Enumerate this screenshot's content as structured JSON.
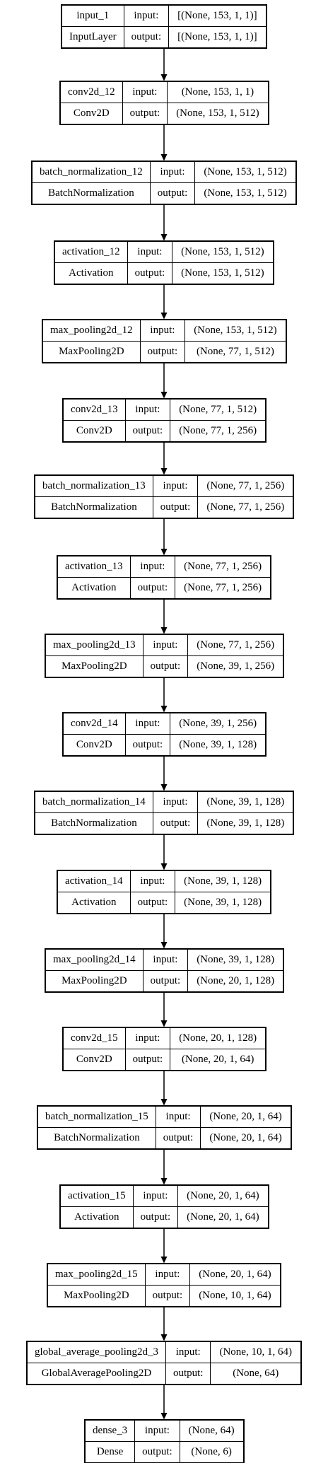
{
  "layers": [
    {
      "name": "input_1",
      "type": "InputLayer",
      "input_label": "input:",
      "output_label": "output:",
      "input_shape": "[(None, 153, 1, 1)]",
      "output_shape": "[(None, 153, 1, 1)]"
    },
    {
      "name": "conv2d_12",
      "type": "Conv2D",
      "input_label": "input:",
      "output_label": "output:",
      "input_shape": "(None, 153, 1, 1)",
      "output_shape": "(None, 153, 1, 512)"
    },
    {
      "name": "batch_normalization_12",
      "type": "BatchNormalization",
      "input_label": "input:",
      "output_label": "output:",
      "input_shape": "(None, 153, 1, 512)",
      "output_shape": "(None, 153, 1, 512)"
    },
    {
      "name": "activation_12",
      "type": "Activation",
      "input_label": "input:",
      "output_label": "output:",
      "input_shape": "(None, 153, 1, 512)",
      "output_shape": "(None, 153, 1, 512)"
    },
    {
      "name": "max_pooling2d_12",
      "type": "MaxPooling2D",
      "input_label": "input:",
      "output_label": "output:",
      "input_shape": "(None, 153, 1, 512)",
      "output_shape": "(None, 77, 1, 512)"
    },
    {
      "name": "conv2d_13",
      "type": "Conv2D",
      "input_label": "input:",
      "output_label": "output:",
      "input_shape": "(None, 77, 1, 512)",
      "output_shape": "(None, 77, 1, 256)"
    },
    {
      "name": "batch_normalization_13",
      "type": "BatchNormalization",
      "input_label": "input:",
      "output_label": "output:",
      "input_shape": "(None, 77, 1, 256)",
      "output_shape": "(None, 77, 1, 256)"
    },
    {
      "name": "activation_13",
      "type": "Activation",
      "input_label": "input:",
      "output_label": "output:",
      "input_shape": "(None, 77, 1, 256)",
      "output_shape": "(None, 77, 1, 256)"
    },
    {
      "name": "max_pooling2d_13",
      "type": "MaxPooling2D",
      "input_label": "input:",
      "output_label": "output:",
      "input_shape": "(None, 77, 1, 256)",
      "output_shape": "(None, 39, 1, 256)"
    },
    {
      "name": "conv2d_14",
      "type": "Conv2D",
      "input_label": "input:",
      "output_label": "output:",
      "input_shape": "(None, 39, 1, 256)",
      "output_shape": "(None, 39, 1, 128)"
    },
    {
      "name": "batch_normalization_14",
      "type": "BatchNormalization",
      "input_label": "input:",
      "output_label": "output:",
      "input_shape": "(None, 39, 1, 128)",
      "output_shape": "(None, 39, 1, 128)"
    },
    {
      "name": "activation_14",
      "type": "Activation",
      "input_label": "input:",
      "output_label": "output:",
      "input_shape": "(None, 39, 1, 128)",
      "output_shape": "(None, 39, 1, 128)"
    },
    {
      "name": "max_pooling2d_14",
      "type": "MaxPooling2D",
      "input_label": "input:",
      "output_label": "output:",
      "input_shape": "(None, 39, 1, 128)",
      "output_shape": "(None, 20, 1, 128)"
    },
    {
      "name": "conv2d_15",
      "type": "Conv2D",
      "input_label": "input:",
      "output_label": "output:",
      "input_shape": "(None, 20, 1, 128)",
      "output_shape": "(None, 20, 1, 64)"
    },
    {
      "name": "batch_normalization_15",
      "type": "BatchNormalization",
      "input_label": "input:",
      "output_label": "output:",
      "input_shape": "(None, 20, 1, 64)",
      "output_shape": "(None, 20, 1, 64)"
    },
    {
      "name": "activation_15",
      "type": "Activation",
      "input_label": "input:",
      "output_label": "output:",
      "input_shape": "(None, 20, 1, 64)",
      "output_shape": "(None, 20, 1, 64)"
    },
    {
      "name": "max_pooling2d_15",
      "type": "MaxPooling2D",
      "input_label": "input:",
      "output_label": "output:",
      "input_shape": "(None, 20, 1, 64)",
      "output_shape": "(None, 10, 1, 64)"
    },
    {
      "name": "global_average_pooling2d_3",
      "type": "GlobalAveragePooling2D",
      "input_label": "input:",
      "output_label": "output:",
      "input_shape": "(None, 10, 1, 64)",
      "output_shape": "(None, 64)"
    },
    {
      "name": "dense_3",
      "type": "Dense",
      "input_label": "input:",
      "output_label": "output:",
      "input_shape": "(None, 64)",
      "output_shape": "(None, 6)"
    }
  ],
  "colors": {
    "line": "#000000",
    "background": "#ffffff"
  }
}
